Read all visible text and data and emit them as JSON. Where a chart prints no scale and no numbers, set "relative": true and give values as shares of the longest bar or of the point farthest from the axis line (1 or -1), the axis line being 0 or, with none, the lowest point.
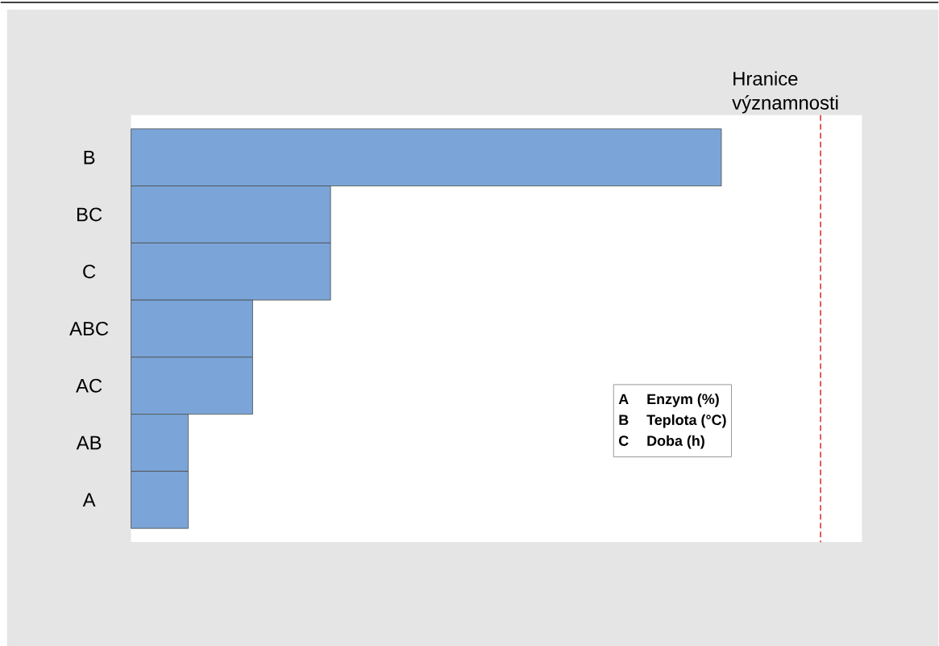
{
  "chart_data": {
    "type": "bar",
    "orientation": "horizontal",
    "relative": true,
    "categories": [
      "B",
      "BC",
      "C",
      "ABC",
      "AC",
      "AB",
      "A"
    ],
    "values": [
      1,
      0.338,
      0.338,
      0.206,
      0.206,
      0.097,
      0.097
    ],
    "color": "#7ba5d8",
    "ref_lines": [
      {
        "axis": "x",
        "value": 1.168,
        "label": "Hranice významnosti",
        "color": "#d62728",
        "line_style": "dashed"
      }
    ],
    "annotations": [
      "A",
      "Enzym (%)",
      "B",
      "Teplota (°C)",
      "C",
      "Doba (h)"
    ]
  }
}
